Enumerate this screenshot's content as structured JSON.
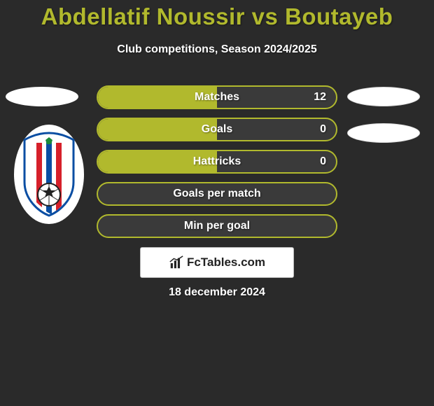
{
  "background_color": "#2a2a2a",
  "title": {
    "text": "Abdellatif Noussir vs Boutayeb",
    "color": "#b1b92d",
    "fontsize": 33
  },
  "subtitle": {
    "text": "Club competitions, Season 2024/2025",
    "color": "#ffffff",
    "fontsize": 16
  },
  "bars": {
    "border_color": "#b1b92d",
    "empty_fill": "#3a3a3a",
    "half_fill": "#b1b92d",
    "label_color": "#ffffff",
    "items": [
      {
        "label": "Matches",
        "left_value": "",
        "right_value": "12",
        "fill_ratio": 0.5
      },
      {
        "label": "Goals",
        "left_value": "",
        "right_value": "0",
        "fill_ratio": 0.5
      },
      {
        "label": "Hattricks",
        "left_value": "",
        "right_value": "0",
        "fill_ratio": 0.5
      },
      {
        "label": "Goals per match",
        "left_value": "",
        "right_value": "",
        "fill_ratio": 0.0
      },
      {
        "label": "Min per goal",
        "left_value": "",
        "right_value": "",
        "fill_ratio": 0.0
      }
    ]
  },
  "left_club": {
    "emblem_type": "shield",
    "ellipse_fill": "#ffffff",
    "shield": {
      "bg": "#ffffff",
      "stripe_red": "#d6202a",
      "stripe_blue": "#0a4ea3",
      "ball": "#222222"
    }
  },
  "right_badges": {
    "top": {
      "fill": "#ffffff"
    },
    "bottom": {
      "fill": "#ffffff"
    }
  },
  "branding": {
    "text": "FcTables.com",
    "icon_color": "#222222"
  },
  "date": {
    "text": "18 december 2024",
    "color": "#ffffff"
  }
}
